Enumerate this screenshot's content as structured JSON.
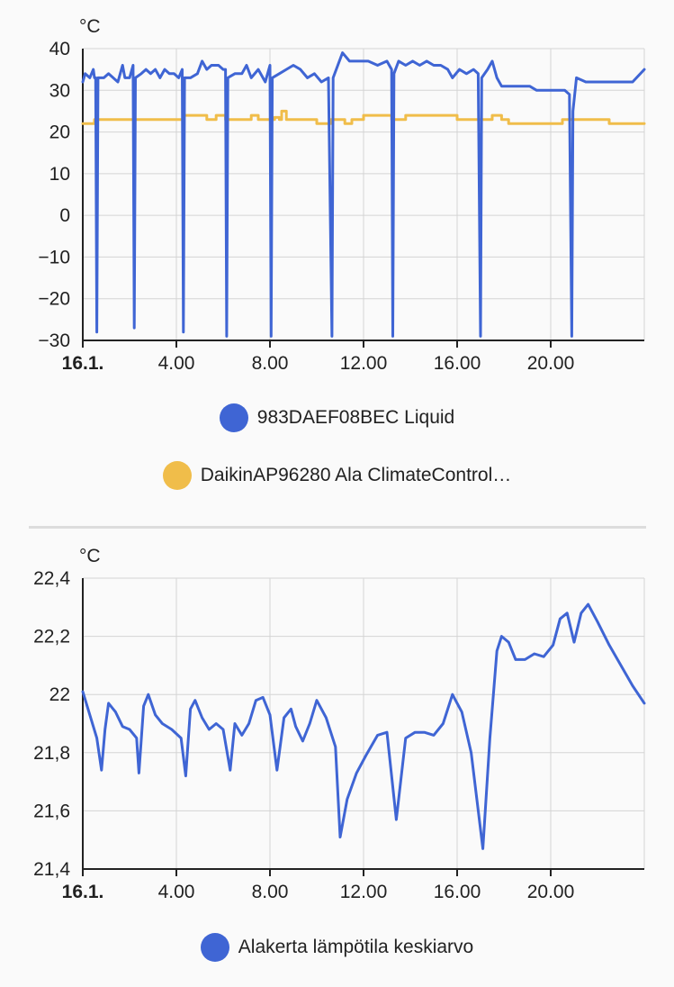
{
  "charts": [
    {
      "type": "line",
      "unit": "°C",
      "ylim": [
        -30,
        40
      ],
      "y_ticks": [
        "40",
        "30",
        "20",
        "10",
        "0",
        "−10",
        "−20",
        "−30"
      ],
      "y_tick_values": [
        40,
        30,
        20,
        10,
        0,
        -10,
        -20,
        -30
      ],
      "x_ticks": [
        "16.1.",
        "4.00",
        "8.00",
        "12.00",
        "16.00",
        "20.00"
      ],
      "x_tick_hours": [
        0,
        4,
        8,
        12,
        16,
        20
      ],
      "x_range_hours": [
        0,
        24
      ],
      "series": [
        {
          "name": "983DAEF08BEC Liquid",
          "color": "#3f65d4",
          "points": [
            [
              0,
              32
            ],
            [
              0.1,
              34
            ],
            [
              0.3,
              33
            ],
            [
              0.45,
              35
            ],
            [
              0.5,
              33
            ],
            [
              0.55,
              33
            ],
            [
              0.6,
              -28
            ],
            [
              0.65,
              33
            ],
            [
              0.9,
              33
            ],
            [
              1.1,
              34
            ],
            [
              1.3,
              33
            ],
            [
              1.5,
              32
            ],
            [
              1.6,
              34
            ],
            [
              1.7,
              36
            ],
            [
              1.8,
              33
            ],
            [
              2,
              33
            ],
            [
              2.15,
              36
            ],
            [
              2.2,
              -27
            ],
            [
              2.25,
              33
            ],
            [
              2.5,
              34
            ],
            [
              2.7,
              35
            ],
            [
              2.9,
              34
            ],
            [
              3.1,
              35
            ],
            [
              3.3,
              33
            ],
            [
              3.5,
              35
            ],
            [
              3.7,
              34
            ],
            [
              3.9,
              34
            ],
            [
              4.1,
              33
            ],
            [
              4.25,
              35
            ],
            [
              4.3,
              -28
            ],
            [
              4.35,
              33
            ],
            [
              4.6,
              33
            ],
            [
              4.9,
              34
            ],
            [
              5.1,
              37
            ],
            [
              5.3,
              35
            ],
            [
              5.5,
              36
            ],
            [
              5.8,
              36
            ],
            [
              6.0,
              35
            ],
            [
              6.1,
              35
            ],
            [
              6.15,
              -29
            ],
            [
              6.2,
              33
            ],
            [
              6.5,
              34
            ],
            [
              6.8,
              34
            ],
            [
              7,
              36
            ],
            [
              7.2,
              33
            ],
            [
              7.5,
              35
            ],
            [
              7.8,
              32
            ],
            [
              8,
              36
            ],
            [
              8.05,
              -29
            ],
            [
              8.1,
              33
            ],
            [
              8.4,
              34
            ],
            [
              8.7,
              35
            ],
            [
              9,
              36
            ],
            [
              9.3,
              35
            ],
            [
              9.6,
              33
            ],
            [
              9.9,
              34
            ],
            [
              10.2,
              32
            ],
            [
              10.5,
              33
            ],
            [
              10.65,
              -29
            ],
            [
              10.7,
              33
            ],
            [
              10.9,
              36
            ],
            [
              11.1,
              39
            ],
            [
              11.4,
              37
            ],
            [
              11.8,
              37
            ],
            [
              12.2,
              37
            ],
            [
              12.6,
              36
            ],
            [
              13,
              37
            ],
            [
              13.2,
              35
            ],
            [
              13.25,
              -29
            ],
            [
              13.3,
              34
            ],
            [
              13.5,
              37
            ],
            [
              13.8,
              36
            ],
            [
              14.1,
              37
            ],
            [
              14.4,
              36
            ],
            [
              14.7,
              37
            ],
            [
              15,
              36
            ],
            [
              15.3,
              36
            ],
            [
              15.6,
              35
            ],
            [
              15.8,
              33
            ],
            [
              16.1,
              35
            ],
            [
              16.4,
              34
            ],
            [
              16.7,
              35
            ],
            [
              16.9,
              34
            ],
            [
              17.0,
              -29
            ],
            [
              17.05,
              33
            ],
            [
              17.3,
              35
            ],
            [
              17.5,
              37
            ],
            [
              17.7,
              33
            ],
            [
              17.9,
              31
            ],
            [
              18.3,
              31
            ],
            [
              18.7,
              31
            ],
            [
              19.1,
              31
            ],
            [
              19.4,
              30
            ],
            [
              19.8,
              30
            ],
            [
              20.2,
              30
            ],
            [
              20.6,
              30
            ],
            [
              20.8,
              29
            ],
            [
              20.9,
              -29
            ],
            [
              20.95,
              25
            ],
            [
              21.1,
              33
            ],
            [
              21.5,
              32
            ],
            [
              22,
              32
            ],
            [
              22.5,
              32
            ],
            [
              23,
              32
            ],
            [
              23.5,
              32
            ],
            [
              24,
              35
            ]
          ]
        },
        {
          "name": "DaikinAP96280 Ala ClimateControl…",
          "color": "#f0bd4a",
          "points": [
            [
              0,
              22
            ],
            [
              0.5,
              22
            ],
            [
              0.5,
              23
            ],
            [
              2,
              23
            ],
            [
              4.3,
              23
            ],
            [
              4.3,
              24
            ],
            [
              5.3,
              24
            ],
            [
              5.3,
              23
            ],
            [
              5.7,
              23
            ],
            [
              5.7,
              24
            ],
            [
              6.1,
              24
            ],
            [
              6.1,
              23
            ],
            [
              7,
              23
            ],
            [
              7.2,
              23
            ],
            [
              7.2,
              24
            ],
            [
              7.5,
              24
            ],
            [
              7.5,
              23
            ],
            [
              8.2,
              23
            ],
            [
              8.2,
              23.5
            ],
            [
              8.4,
              23.5
            ],
            [
              8.4,
              23
            ],
            [
              8.5,
              23
            ],
            [
              8.5,
              25
            ],
            [
              8.7,
              25
            ],
            [
              8.7,
              23
            ],
            [
              10,
              23
            ],
            [
              10,
              22
            ],
            [
              10.6,
              22
            ],
            [
              10.6,
              23
            ],
            [
              11.2,
              23
            ],
            [
              11.2,
              22
            ],
            [
              11.5,
              22
            ],
            [
              11.5,
              23
            ],
            [
              12,
              23
            ],
            [
              12,
              24
            ],
            [
              13.2,
              24
            ],
            [
              13.2,
              23
            ],
            [
              13.8,
              23
            ],
            [
              13.8,
              24
            ],
            [
              16,
              24
            ],
            [
              16,
              23
            ],
            [
              17.5,
              23
            ],
            [
              17.5,
              24
            ],
            [
              17.9,
              24
            ],
            [
              17.9,
              23
            ],
            [
              18.2,
              23
            ],
            [
              18.2,
              22
            ],
            [
              20,
              22
            ],
            [
              20.5,
              22
            ],
            [
              20.5,
              23
            ],
            [
              22.5,
              23
            ],
            [
              22.5,
              22
            ],
            [
              24,
              22
            ]
          ]
        }
      ]
    },
    {
      "type": "line",
      "unit": "°C",
      "ylim": [
        21.4,
        22.4
      ],
      "y_ticks": [
        "22,4",
        "22,2",
        "22",
        "21,8",
        "21,6",
        "21,4"
      ],
      "y_tick_values": [
        22.4,
        22.2,
        22.0,
        21.8,
        21.6,
        21.4
      ],
      "x_ticks": [
        "16.1.",
        "4.00",
        "8.00",
        "12.00",
        "16.00",
        "20.00"
      ],
      "x_tick_hours": [
        0,
        4,
        8,
        12,
        16,
        20
      ],
      "x_range_hours": [
        0,
        24
      ],
      "series": [
        {
          "name": "Alakerta lämpötila keskiarvo",
          "color": "#3f65d4",
          "points": [
            [
              0,
              22.01
            ],
            [
              0.3,
              21.93
            ],
            [
              0.6,
              21.85
            ],
            [
              0.8,
              21.74
            ],
            [
              0.95,
              21.88
            ],
            [
              1.1,
              21.97
            ],
            [
              1.4,
              21.94
            ],
            [
              1.7,
              21.89
            ],
            [
              2.0,
              21.88
            ],
            [
              2.3,
              21.85
            ],
            [
              2.4,
              21.73
            ],
            [
              2.6,
              21.96
            ],
            [
              2.8,
              22.0
            ],
            [
              3.1,
              21.93
            ],
            [
              3.4,
              21.9
            ],
            [
              3.8,
              21.88
            ],
            [
              4.2,
              21.85
            ],
            [
              4.4,
              21.72
            ],
            [
              4.6,
              21.95
            ],
            [
              4.8,
              21.98
            ],
            [
              5.1,
              21.92
            ],
            [
              5.4,
              21.88
            ],
            [
              5.7,
              21.9
            ],
            [
              6.0,
              21.88
            ],
            [
              6.3,
              21.74
            ],
            [
              6.5,
              21.9
            ],
            [
              6.8,
              21.86
            ],
            [
              7.1,
              21.9
            ],
            [
              7.4,
              21.98
            ],
            [
              7.7,
              21.99
            ],
            [
              8.0,
              21.93
            ],
            [
              8.3,
              21.74
            ],
            [
              8.6,
              21.92
            ],
            [
              8.9,
              21.95
            ],
            [
              9.1,
              21.89
            ],
            [
              9.4,
              21.84
            ],
            [
              9.7,
              21.9
            ],
            [
              10.0,
              21.98
            ],
            [
              10.4,
              21.92
            ],
            [
              10.8,
              21.82
            ],
            [
              11.0,
              21.51
            ],
            [
              11.3,
              21.64
            ],
            [
              11.7,
              21.73
            ],
            [
              12.1,
              21.79
            ],
            [
              12.6,
              21.86
            ],
            [
              13.0,
              21.87
            ],
            [
              13.4,
              21.57
            ],
            [
              13.8,
              21.85
            ],
            [
              14.2,
              21.87
            ],
            [
              14.6,
              21.87
            ],
            [
              15.0,
              21.86
            ],
            [
              15.4,
              21.9
            ],
            [
              15.8,
              22.0
            ],
            [
              16.2,
              21.94
            ],
            [
              16.6,
              21.8
            ],
            [
              17.1,
              21.47
            ],
            [
              17.4,
              21.85
            ],
            [
              17.7,
              22.15
            ],
            [
              17.9,
              22.2
            ],
            [
              18.2,
              22.18
            ],
            [
              18.5,
              22.12
            ],
            [
              18.9,
              22.12
            ],
            [
              19.3,
              22.14
            ],
            [
              19.7,
              22.13
            ],
            [
              20.1,
              22.17
            ],
            [
              20.4,
              22.26
            ],
            [
              20.7,
              22.28
            ],
            [
              21.0,
              22.18
            ],
            [
              21.3,
              22.28
            ],
            [
              21.6,
              22.31
            ],
            [
              22.0,
              22.25
            ],
            [
              22.5,
              22.17
            ],
            [
              23.0,
              22.1
            ],
            [
              23.5,
              22.03
            ],
            [
              24,
              21.97
            ]
          ]
        }
      ]
    }
  ]
}
